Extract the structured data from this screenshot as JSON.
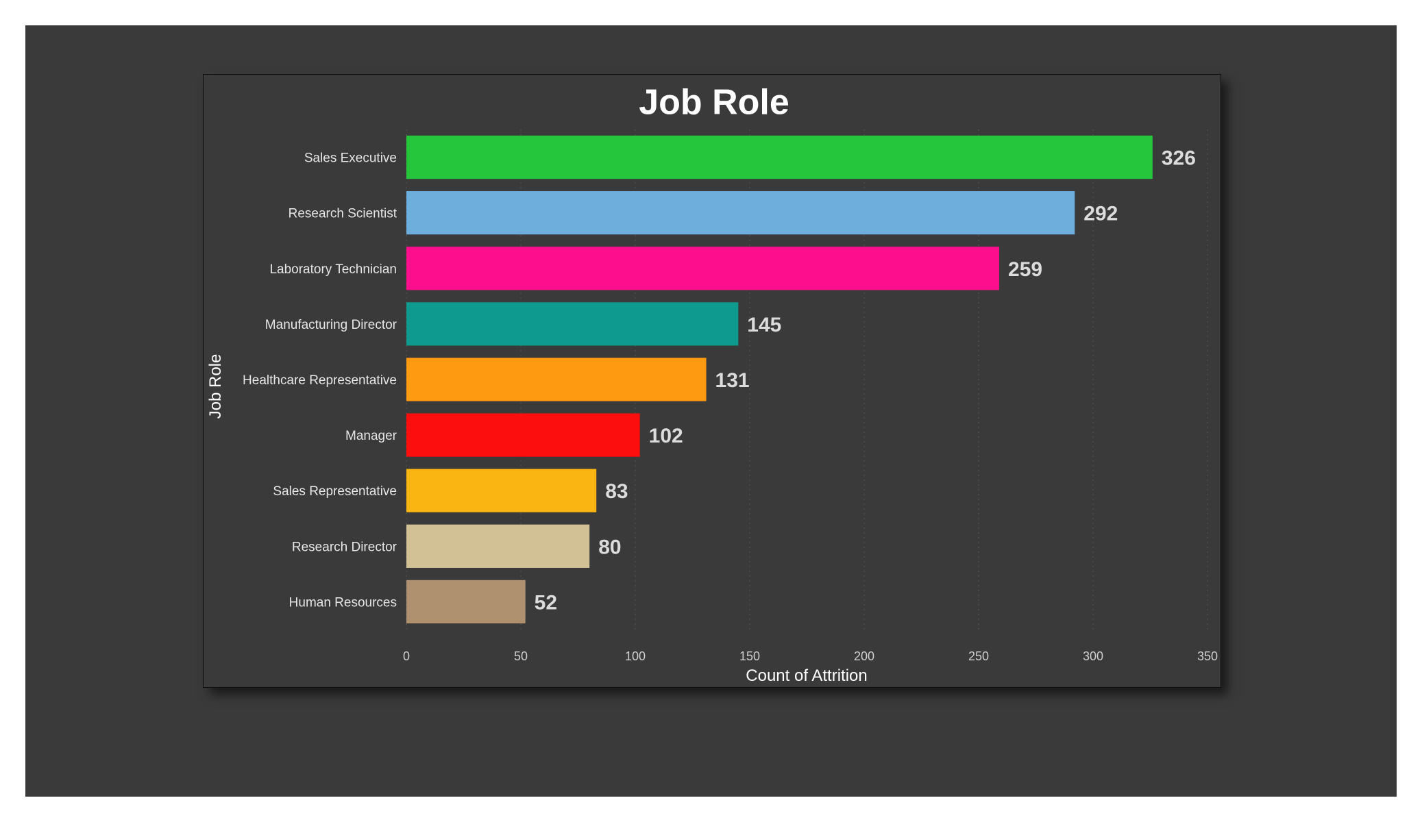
{
  "chart_data": {
    "type": "bar",
    "orientation": "horizontal",
    "title": "Job Role",
    "xlabel": "Count of Attrition",
    "ylabel": "Job Role",
    "xlim": [
      0,
      350
    ],
    "xticks": [
      0,
      50,
      100,
      150,
      200,
      250,
      300,
      350
    ],
    "grid": "vertical-dotted",
    "categories": [
      "Sales Executive",
      "Research Scientist",
      "Laboratory Technician",
      "Manufacturing Director",
      "Healthcare Representative",
      "Manager",
      "Sales Representative",
      "Research Director",
      "Human Resources"
    ],
    "values": [
      326,
      292,
      259,
      145,
      131,
      102,
      83,
      80,
      52
    ],
    "colors": [
      "#25c53c",
      "#6daedd",
      "#fd0e8d",
      "#0e9a8f",
      "#fd9a11",
      "#fd0e0e",
      "#fbb513",
      "#d2c194",
      "#b0916f"
    ],
    "background": "#3a3a3a"
  }
}
